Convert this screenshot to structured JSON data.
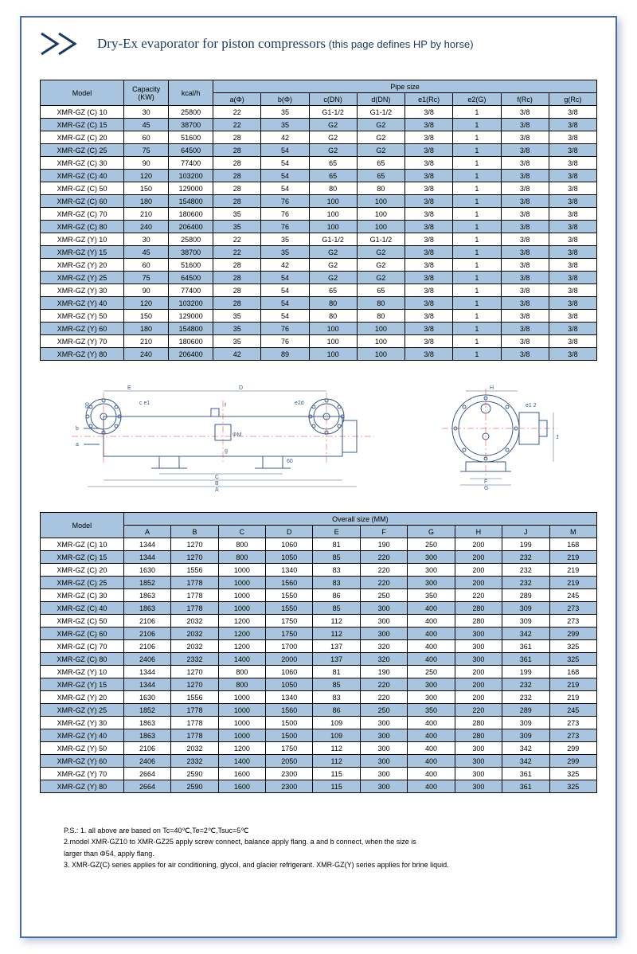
{
  "title": "Dry-Ex evaporator for piston compressors",
  "title_sub": " (this page defines HP by horse)",
  "table1": {
    "top_headers": [
      "Model",
      "Capacity (KW)",
      "kcal/h",
      "Pipe size"
    ],
    "pipe_headers": [
      "a(Φ)",
      "b(Φ)",
      "c(DN)",
      "d(DN)",
      "e1(Rc)",
      "e2(G)",
      "f(Rc)",
      "g(Rc)"
    ],
    "rows": [
      [
        "XMR-GZ (C) 10",
        "30",
        "25800",
        "22",
        "35",
        "G1-1/2",
        "G1-1/2",
        "3/8",
        "1",
        "3/8",
        "3/8"
      ],
      [
        "XMR-GZ (C) 15",
        "45",
        "38700",
        "22",
        "35",
        "G2",
        "G2",
        "3/8",
        "1",
        "3/8",
        "3/8"
      ],
      [
        "XMR-GZ (C) 20",
        "60",
        "51600",
        "28",
        "42",
        "G2",
        "G2",
        "3/8",
        "1",
        "3/8",
        "3/8"
      ],
      [
        "XMR-GZ (C) 25",
        "75",
        "64500",
        "28",
        "54",
        "G2",
        "G2",
        "3/8",
        "1",
        "3/8",
        "3/8"
      ],
      [
        "XMR-GZ (C) 30",
        "90",
        "77400",
        "28",
        "54",
        "65",
        "65",
        "3/8",
        "1",
        "3/8",
        "3/8"
      ],
      [
        "XMR-GZ (C) 40",
        "120",
        "103200",
        "28",
        "54",
        "65",
        "65",
        "3/8",
        "1",
        "3/8",
        "3/8"
      ],
      [
        "XMR-GZ (C) 50",
        "150",
        "129000",
        "28",
        "54",
        "80",
        "80",
        "3/8",
        "1",
        "3/8",
        "3/8"
      ],
      [
        "XMR-GZ (C) 60",
        "180",
        "154800",
        "28",
        "76",
        "100",
        "100",
        "3/8",
        "1",
        "3/8",
        "3/8"
      ],
      [
        "XMR-GZ (C) 70",
        "210",
        "180600",
        "35",
        "76",
        "100",
        "100",
        "3/8",
        "1",
        "3/8",
        "3/8"
      ],
      [
        "XMR-GZ (C) 80",
        "240",
        "206400",
        "35",
        "76",
        "100",
        "100",
        "3/8",
        "1",
        "3/8",
        "3/8"
      ],
      [
        "XMR-GZ (Y) 10",
        "30",
        "25800",
        "22",
        "35",
        "G1-1/2",
        "G1-1/2",
        "3/8",
        "1",
        "3/8",
        "3/8"
      ],
      [
        "XMR-GZ (Y) 15",
        "45",
        "38700",
        "22",
        "35",
        "G2",
        "G2",
        "3/8",
        "1",
        "3/8",
        "3/8"
      ],
      [
        "XMR-GZ (Y) 20",
        "60",
        "51600",
        "28",
        "42",
        "G2",
        "G2",
        "3/8",
        "1",
        "3/8",
        "3/8"
      ],
      [
        "XMR-GZ (Y) 25",
        "75",
        "64500",
        "28",
        "54",
        "G2",
        "G2",
        "3/8",
        "1",
        "3/8",
        "3/8"
      ],
      [
        "XMR-GZ (Y) 30",
        "90",
        "77400",
        "28",
        "54",
        "65",
        "65",
        "3/8",
        "1",
        "3/8",
        "3/8"
      ],
      [
        "XMR-GZ (Y) 40",
        "120",
        "103200",
        "28",
        "54",
        "80",
        "80",
        "3/8",
        "1",
        "3/8",
        "3/8"
      ],
      [
        "XMR-GZ (Y) 50",
        "150",
        "129000",
        "35",
        "54",
        "80",
        "80",
        "3/8",
        "1",
        "3/8",
        "3/8"
      ],
      [
        "XMR-GZ (Y) 60",
        "180",
        "154800",
        "35",
        "76",
        "100",
        "100",
        "3/8",
        "1",
        "3/8",
        "3/8"
      ],
      [
        "XMR-GZ (Y) 70",
        "210",
        "180600",
        "35",
        "76",
        "100",
        "100",
        "3/8",
        "1",
        "3/8",
        "3/8"
      ],
      [
        "XMR-GZ (Y) 80",
        "240",
        "206400",
        "42",
        "89",
        "100",
        "100",
        "3/8",
        "1",
        "3/8",
        "3/8"
      ]
    ]
  },
  "table2": {
    "top_headers": [
      "Model",
      "Overall size (MM)"
    ],
    "size_headers": [
      "A",
      "B",
      "C",
      "D",
      "E",
      "F",
      "G",
      "H",
      "J",
      "M"
    ],
    "rows": [
      [
        "XMR-GZ (C) 10",
        "1344",
        "1270",
        "800",
        "1060",
        "81",
        "190",
        "250",
        "200",
        "199",
        "168"
      ],
      [
        "XMR-GZ (C) 15",
        "1344",
        "1270",
        "800",
        "1050",
        "85",
        "220",
        "300",
        "200",
        "232",
        "219"
      ],
      [
        "XMR-GZ (C) 20",
        "1630",
        "1556",
        "1000",
        "1340",
        "83",
        "220",
        "300",
        "200",
        "232",
        "219"
      ],
      [
        "XMR-GZ (C) 25",
        "1852",
        "1778",
        "1000",
        "1560",
        "83",
        "220",
        "300",
        "200",
        "232",
        "219"
      ],
      [
        "XMR-GZ (C) 30",
        "1863",
        "1778",
        "1000",
        "1550",
        "86",
        "250",
        "350",
        "220",
        "289",
        "245"
      ],
      [
        "XMR-GZ (C) 40",
        "1863",
        "1778",
        "1000",
        "1550",
        "85",
        "300",
        "400",
        "280",
        "309",
        "273"
      ],
      [
        "XMR-GZ (C) 50",
        "2106",
        "2032",
        "1200",
        "1750",
        "112",
        "300",
        "400",
        "280",
        "309",
        "273"
      ],
      [
        "XMR-GZ (C) 60",
        "2106",
        "2032",
        "1200",
        "1750",
        "112",
        "300",
        "400",
        "300",
        "342",
        "299"
      ],
      [
        "XMR-GZ (C) 70",
        "2106",
        "2032",
        "1200",
        "1700",
        "137",
        "320",
        "400",
        "300",
        "361",
        "325"
      ],
      [
        "XMR-GZ (C) 80",
        "2406",
        "2332",
        "1400",
        "2000",
        "137",
        "320",
        "400",
        "300",
        "361",
        "325"
      ],
      [
        "XMR-GZ (Y) 10",
        "1344",
        "1270",
        "800",
        "1060",
        "81",
        "190",
        "250",
        "200",
        "199",
        "168"
      ],
      [
        "XMR-GZ (Y) 15",
        "1344",
        "1270",
        "800",
        "1050",
        "85",
        "220",
        "300",
        "200",
        "232",
        "219"
      ],
      [
        "XMR-GZ (Y) 20",
        "1630",
        "1556",
        "1000",
        "1340",
        "83",
        "220",
        "300",
        "200",
        "232",
        "219"
      ],
      [
        "XMR-GZ (Y) 25",
        "1852",
        "1778",
        "1000",
        "1560",
        "86",
        "250",
        "350",
        "220",
        "289",
        "245"
      ],
      [
        "XMR-GZ (Y) 30",
        "1863",
        "1778",
        "1000",
        "1500",
        "109",
        "300",
        "400",
        "280",
        "309",
        "273"
      ],
      [
        "XMR-GZ (Y) 40",
        "1863",
        "1778",
        "1000",
        "1500",
        "109",
        "300",
        "400",
        "280",
        "309",
        "273"
      ],
      [
        "XMR-GZ (Y) 50",
        "2106",
        "2032",
        "1200",
        "1750",
        "112",
        "300",
        "400",
        "300",
        "342",
        "299"
      ],
      [
        "XMR-GZ (Y) 60",
        "2406",
        "2332",
        "1400",
        "2050",
        "112",
        "300",
        "400",
        "300",
        "342",
        "299"
      ],
      [
        "XMR-GZ (Y) 70",
        "2664",
        "2590",
        "1600",
        "2300",
        "115",
        "300",
        "400",
        "300",
        "361",
        "325"
      ],
      [
        "XMR-GZ (Y) 80",
        "2664",
        "2590",
        "1600",
        "2300",
        "115",
        "300",
        "400",
        "300",
        "361",
        "325"
      ]
    ]
  },
  "ps": [
    "P.S.: 1. all above are based on Tc=40℃,Te=2℃,Tsuc=5℃",
    "      2.model XMR-GZ10 to XMR-GZ25 apply screw connect, balance apply flang. a and b connect, when the size is",
    "        larger than Φ54, apply flang.",
    "      3. XMR-GZ(C) series applies for air conditioning, glycol, and glacier refrigerant. XMR-GZ(Y) series applies for brine liquid."
  ],
  "colors": {
    "header_bg": "#a9c4de",
    "border": "#000000",
    "title_color": "#1a3a5e",
    "chevron_color": "#1a3a5e",
    "page_border": "#4a6b9a",
    "diagram_stroke": "#3a5a85",
    "diagram_centerline": "#d93333"
  },
  "diagram_labels": {
    "side": [
      "E",
      "D",
      "H",
      "c e1",
      "f",
      "e2d",
      "e1 2",
      "b",
      "a",
      "ΦM",
      "g",
      "60",
      "80",
      "C",
      "B",
      "A",
      "F",
      "G",
      "J"
    ]
  }
}
